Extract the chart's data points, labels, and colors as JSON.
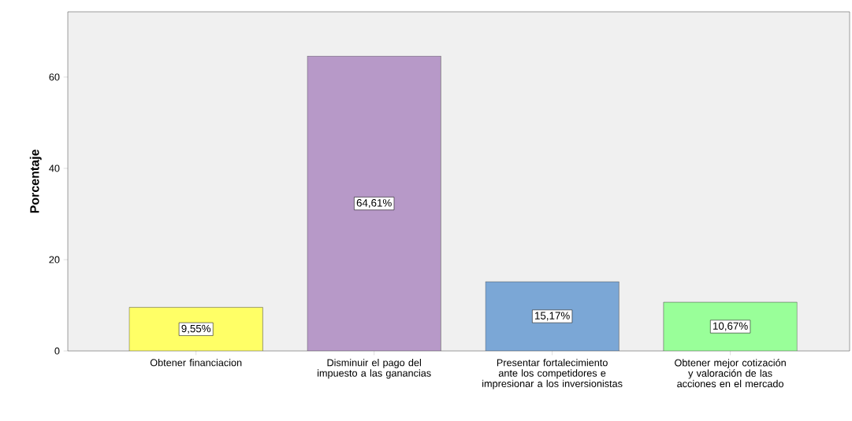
{
  "chart_data": {
    "type": "bar",
    "ylabel": "Porcentaje",
    "categories": [
      "Obtener financiacion",
      "Disminuir el pago del impuesto a las ganancias",
      "Presentar fortalecimiento ante los competidores e impresionar a los inversionistas",
      "Obtener mejor cotización y valoración de las acciones en el mercado"
    ],
    "values": [
      9.55,
      64.61,
      15.17,
      10.67
    ],
    "colors": [
      "#ffff66",
      "#b799c8",
      "#7ba7d6",
      "#99ff99"
    ],
    "value_labels": [
      "9,55%",
      "64,61%",
      "15,17%",
      "10,67%"
    ],
    "ylim": [
      0,
      74.3
    ],
    "yticks": [
      0,
      20,
      40,
      60
    ],
    "grid": false
  }
}
